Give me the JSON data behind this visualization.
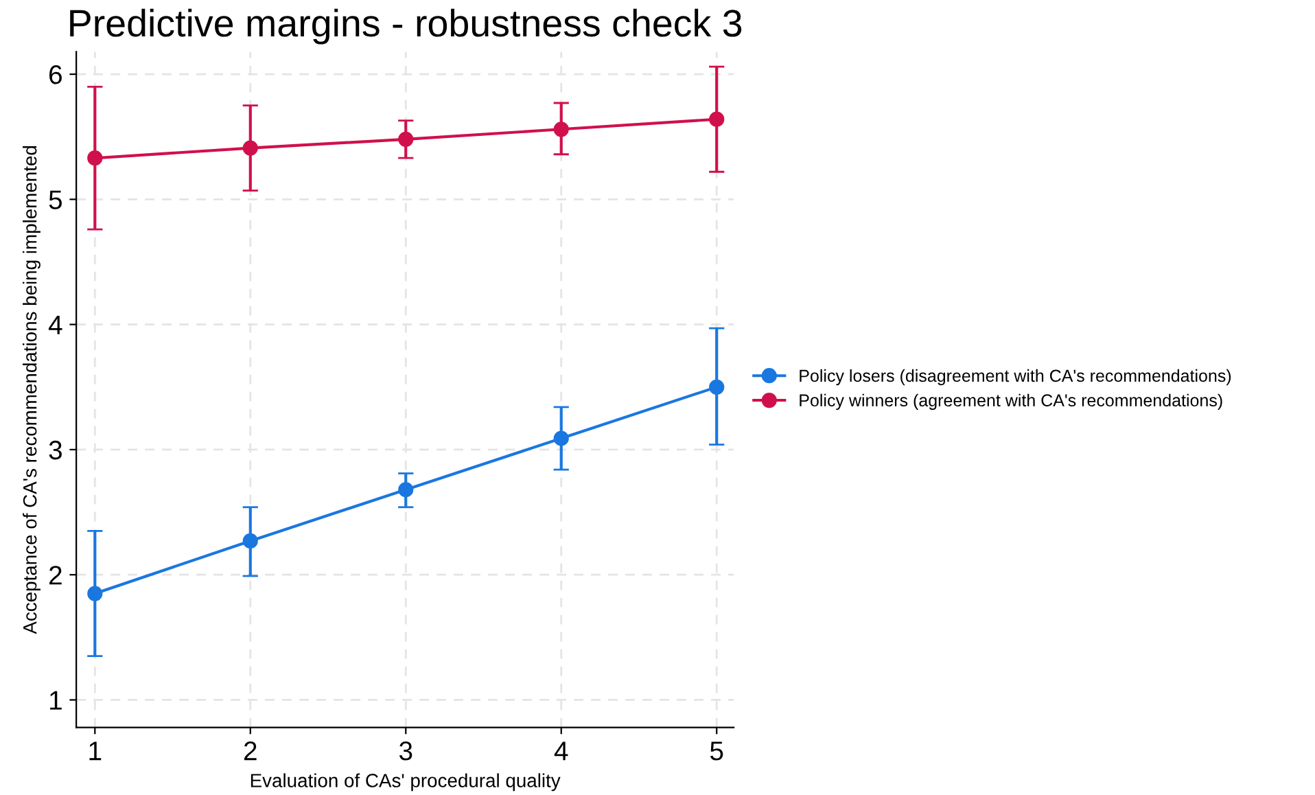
{
  "chart_data": {
    "type": "line",
    "title": "Predictive margins - robustness check 3",
    "xlabel": "Evaluation of CAs' procedural quality",
    "ylabel": "Acceptance of CA's recommendations being implemented",
    "x": [
      1,
      2,
      3,
      4,
      5
    ],
    "series": [
      {
        "name": "Policy losers (disagreement with CA's recommendations)",
        "color": "#1a77e0",
        "values": [
          1.85,
          2.27,
          2.68,
          3.09,
          3.5
        ],
        "errors": [
          [
            1.35,
            2.35
          ],
          [
            1.99,
            2.54
          ],
          [
            2.54,
            2.81
          ],
          [
            2.84,
            3.34
          ],
          [
            3.04,
            3.97
          ]
        ]
      },
      {
        "name": "Policy winners (agreement with CA's recommendations)",
        "color": "#d0104c",
        "values": [
          5.33,
          5.41,
          5.48,
          5.56,
          5.64
        ],
        "errors": [
          [
            4.76,
            5.9
          ],
          [
            5.07,
            5.75
          ],
          [
            5.33,
            5.63
          ],
          [
            5.36,
            5.77
          ],
          [
            5.22,
            6.06
          ]
        ]
      }
    ],
    "xlim": [
      0.88,
      5.11
    ],
    "xticks": [
      1,
      2,
      3,
      4,
      5
    ],
    "ylim": [
      0.78,
      6.18
    ],
    "yticks": [
      1,
      2,
      3,
      4,
      5,
      6
    ],
    "grid": true,
    "legend": "right",
    "marker": "circle",
    "line_style": "solid"
  }
}
